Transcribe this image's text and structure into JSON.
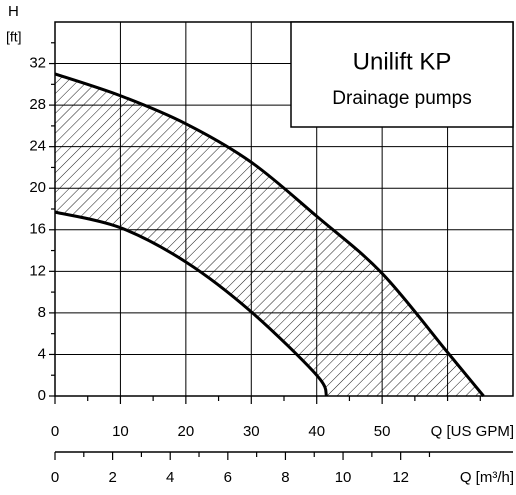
{
  "chart_data": {
    "type": "line",
    "title": "Unilift KP",
    "subtitle": "Drainage pumps",
    "y_label": "H",
    "y_unit": "[ft]",
    "x_label": "Q [US GPM]",
    "x2_label": "Q [m³/h]",
    "xlim": [
      0,
      70
    ],
    "ylim": [
      0,
      36
    ],
    "x2lim": [
      0,
      15.9
    ],
    "xticks": [
      0,
      10,
      20,
      30,
      40,
      50
    ],
    "xminorticks": [
      5,
      15,
      25,
      35,
      45,
      55,
      60,
      65
    ],
    "xgrid": [
      0,
      10,
      20,
      30,
      40,
      50,
      60
    ],
    "yticks": [
      0,
      4,
      8,
      12,
      16,
      20,
      24,
      28,
      32
    ],
    "yminorticks": [
      2,
      6,
      10,
      14,
      18,
      22,
      26,
      30,
      34
    ],
    "x2ticks": [
      0,
      2,
      4,
      6,
      8,
      10,
      12
    ],
    "x2minorticks": [
      1,
      3,
      5,
      7,
      9,
      11,
      13
    ],
    "grid": true,
    "hatched": true,
    "series": [
      {
        "color": "#000000",
        "x": [
          0,
          10,
          20,
          30,
          40,
          50,
          60,
          65.5
        ],
        "values": [
          31,
          28.9,
          26.2,
          22.5,
          17.3,
          11.8,
          4.2,
          0
        ]
      },
      {
        "color": "#000000",
        "x": [
          0,
          10,
          20,
          30,
          40,
          41.5
        ],
        "values": [
          17.7,
          16.2,
          12.9,
          8.1,
          2,
          0
        ]
      }
    ]
  }
}
